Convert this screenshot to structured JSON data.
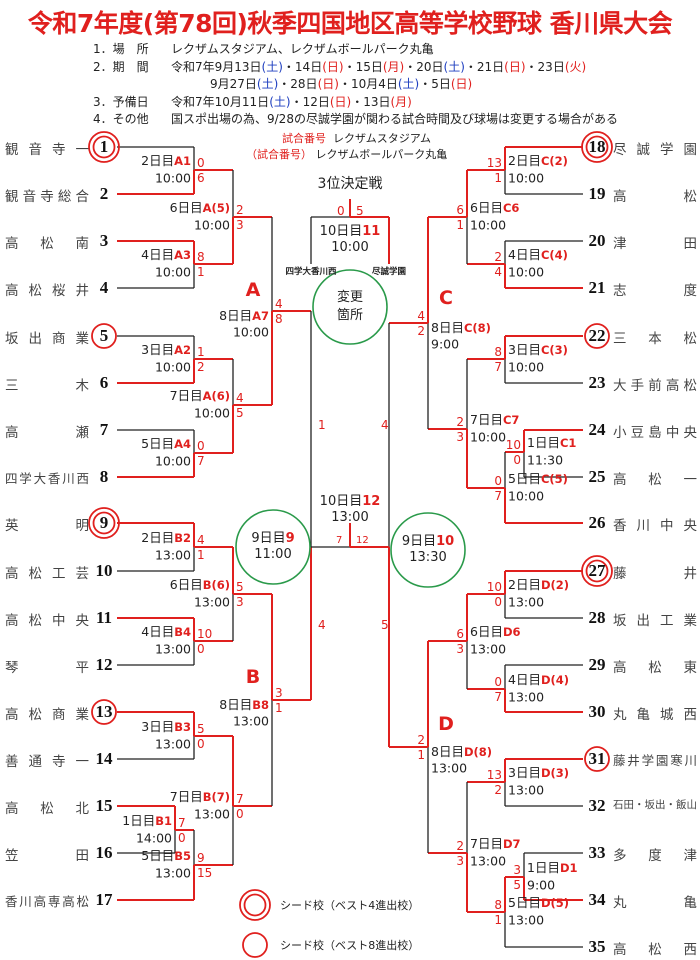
{
  "header": {
    "title": "令和7年度(第78回)秋季四国地区高等学校野球 香川県大会",
    "info": [
      {
        "label": "1．場　所",
        "segments": [
          {
            "t": "レクザムスタジアム、レクザムボールパーク丸亀"
          }
        ]
      },
      {
        "label": "2．期　間",
        "segments": [
          {
            "t": "令和7年9月13日"
          },
          {
            "t": "(土)",
            "c": "sat"
          },
          {
            "t": "・14日"
          },
          {
            "t": "(日)",
            "c": "hol"
          },
          {
            "t": "・15日"
          },
          {
            "t": "(月)",
            "c": "hol"
          },
          {
            "t": "・20日"
          },
          {
            "t": "(土)",
            "c": "sat"
          },
          {
            "t": "・21日"
          },
          {
            "t": "(日)",
            "c": "hol"
          },
          {
            "t": "・23日"
          },
          {
            "t": "(火)",
            "c": "hol"
          }
        ]
      },
      {
        "label": "",
        "segments": [
          {
            "t": "9月27日"
          },
          {
            "t": "(土)",
            "c": "sat"
          },
          {
            "t": "・28日"
          },
          {
            "t": "(日)",
            "c": "hol"
          },
          {
            "t": "・10月4日"
          },
          {
            "t": "(土)",
            "c": "sat"
          },
          {
            "t": "・5日"
          },
          {
            "t": "(日)",
            "c": "hol"
          }
        ]
      },
      {
        "label": "3．予備日",
        "segments": [
          {
            "t": "令和7年10月11日"
          },
          {
            "t": "(土)",
            "c": "sat"
          },
          {
            "t": "・12日"
          },
          {
            "t": "(日)",
            "c": "hol"
          },
          {
            "t": "・13日"
          },
          {
            "t": "(月)",
            "c": "hol"
          }
        ]
      },
      {
        "label": "4．その他",
        "segments": [
          {
            "t": "国スポ出場の為、9/28の尽誠学園が関わる試合時間及び球場は変更する場合がある"
          }
        ]
      }
    ]
  },
  "venue_legend": {
    "line1_key": "試合番号",
    "line1_value": "レクザムスタジアム",
    "line2_key": "（試合番号）",
    "line2_value": "レクザムボールパーク丸亀"
  },
  "third_place": {
    "title": "3位決定戦",
    "left_team": "四学大香川西",
    "right_team": "尽誠学園"
  },
  "change_note": {
    "line1": "変更",
    "line2": "箇所"
  },
  "regions": [
    "A",
    "B",
    "C",
    "D"
  ],
  "seed_legend": {
    "double": "シード校（ベスト4進出校）",
    "single": "シード校（ベスト8進出校）"
  },
  "colors": {
    "accent": "#e0201e",
    "saturday": "#2040c0",
    "circle_green": "#2a9a4a",
    "line": "#222222"
  },
  "teams": [
    {
      "no": "1",
      "name": "観音寺一",
      "seed": "double"
    },
    {
      "no": "2",
      "name": "観音寺総合"
    },
    {
      "no": "3",
      "name": "高松南"
    },
    {
      "no": "4",
      "name": "高松桜井"
    },
    {
      "no": "5",
      "name": "坂出商業",
      "seed": "single"
    },
    {
      "no": "6",
      "name": "三木"
    },
    {
      "no": "7",
      "name": "高瀬"
    },
    {
      "no": "8",
      "name": "四学大香川西"
    },
    {
      "no": "9",
      "name": "英明",
      "seed": "double"
    },
    {
      "no": "10",
      "name": "高松工芸"
    },
    {
      "no": "11",
      "name": "高松中央"
    },
    {
      "no": "12",
      "name": "琴平"
    },
    {
      "no": "13",
      "name": "高松商業",
      "seed": "single"
    },
    {
      "no": "14",
      "name": "善通寺一"
    },
    {
      "no": "15",
      "name": "高松北"
    },
    {
      "no": "16",
      "name": "笠田"
    },
    {
      "no": "17",
      "name": "香川高専高松"
    },
    {
      "no": "18",
      "name": "尽誠学園",
      "seed": "double"
    },
    {
      "no": "19",
      "name": "高松"
    },
    {
      "no": "20",
      "name": "津田"
    },
    {
      "no": "21",
      "name": "志度"
    },
    {
      "no": "22",
      "name": "三本松",
      "seed": "single"
    },
    {
      "no": "23",
      "name": "大手前高松"
    },
    {
      "no": "24",
      "name": "小豆島中央"
    },
    {
      "no": "25",
      "name": "高松一"
    },
    {
      "no": "26",
      "name": "香川中央"
    },
    {
      "no": "27",
      "name": "藤井",
      "seed": "double"
    },
    {
      "no": "28",
      "name": "坂出工業"
    },
    {
      "no": "29",
      "name": "高松東"
    },
    {
      "no": "30",
      "name": "丸亀城西"
    },
    {
      "no": "31",
      "name": "藤井学園寒川",
      "seed": "single"
    },
    {
      "no": "32",
      "name": "石田・坂出・飯山"
    },
    {
      "no": "33",
      "name": "多度津"
    },
    {
      "no": "34",
      "name": "丸亀"
    },
    {
      "no": "35",
      "name": "高松西"
    }
  ],
  "matches": {
    "A1": {
      "day": "2日目",
      "code": "A1",
      "time": "10:00",
      "scores": [
        "0",
        "6"
      ]
    },
    "A3": {
      "day": "4日目",
      "code": "A3",
      "time": "10:00",
      "scores": [
        "8",
        "1"
      ]
    },
    "A5": {
      "day": "6日目",
      "code": "A(5)",
      "time": "10:00",
      "scores": [
        "2",
        "3"
      ]
    },
    "A2": {
      "day": "3日目",
      "code": "A2",
      "time": "10:00",
      "scores": [
        "1",
        "2"
      ]
    },
    "A4": {
      "day": "5日目",
      "code": "A4",
      "time": "10:00",
      "scores": [
        "0",
        "7"
      ]
    },
    "A6": {
      "day": "7日目",
      "code": "A(6)",
      "time": "10:00",
      "scores": [
        "4",
        "5"
      ]
    },
    "A7": {
      "day": "8日目",
      "code": "A7",
      "time": "10:00",
      "scores": [
        "4",
        "8"
      ]
    },
    "B2": {
      "day": "2日目",
      "code": "B2",
      "time": "13:00",
      "scores": [
        "4",
        "1"
      ]
    },
    "B4": {
      "day": "4日目",
      "code": "B4",
      "time": "13:00",
      "scores": [
        "10",
        "0"
      ]
    },
    "B6": {
      "day": "6日目",
      "code": "B(6)",
      "time": "13:00",
      "scores": [
        "5",
        "3"
      ]
    },
    "B3": {
      "day": "3日目",
      "code": "B3",
      "time": "13:00",
      "scores": [
        "5",
        "0"
      ]
    },
    "B1": {
      "day": "1日目",
      "code": "B1",
      "time": "14:00",
      "scores": [
        "7",
        "0"
      ]
    },
    "B5": {
      "day": "5日目",
      "code": "B5",
      "time": "13:00",
      "scores": [
        "9",
        "15"
      ]
    },
    "B7": {
      "day": "7日目",
      "code": "B(7)",
      "time": "13:00",
      "scores": [
        "7",
        "0"
      ]
    },
    "B8": {
      "day": "8日目",
      "code": "B8",
      "time": "13:00",
      "scores": [
        "3",
        "1"
      ]
    },
    "C2": {
      "day": "2日目",
      "code": "C(2)",
      "time": "10:00",
      "scores": [
        "13",
        "1"
      ]
    },
    "C4": {
      "day": "4日目",
      "code": "C(4)",
      "time": "10:00",
      "scores": [
        "2",
        "4"
      ]
    },
    "C6": {
      "day": "6日目",
      "code": "C6",
      "time": "10:00",
      "scores": [
        "6",
        "1"
      ]
    },
    "C3": {
      "day": "3日目",
      "code": "C(3)",
      "time": "10:00",
      "scores": [
        "8",
        "7"
      ]
    },
    "C1": {
      "day": "1日目",
      "code": "C1",
      "time": "11:30",
      "scores": [
        "10",
        "0"
      ]
    },
    "C5": {
      "day": "5日目",
      "code": "C(5)",
      "time": "10:00",
      "scores": [
        "0",
        "7"
      ]
    },
    "C7": {
      "day": "7日目",
      "code": "C7",
      "time": "10:00",
      "scores": [
        "2",
        "3"
      ]
    },
    "C8": {
      "day": "8日目",
      "code": "C(8)",
      "time": "9:00",
      "scores": [
        "4",
        "2"
      ]
    },
    "D2": {
      "day": "2日目",
      "code": "D(2)",
      "time": "13:00",
      "scores": [
        "10",
        "0"
      ]
    },
    "D4": {
      "day": "4日目",
      "code": "D(4)",
      "time": "13:00",
      "scores": [
        "0",
        "7"
      ]
    },
    "D6": {
      "day": "6日目",
      "code": "D6",
      "time": "13:00",
      "scores": [
        "6",
        "3"
      ]
    },
    "D3": {
      "day": "3日目",
      "code": "D(3)",
      "time": "13:00",
      "scores": [
        "13",
        "2"
      ]
    },
    "D1": {
      "day": "1日目",
      "code": "D1",
      "time": "9:00",
      "scores": [
        "3",
        "5"
      ]
    },
    "D5": {
      "day": "5日目",
      "code": "D(5)",
      "time": "13:00",
      "scores": [
        "8",
        "1"
      ]
    },
    "D7": {
      "day": "7日目",
      "code": "D7",
      "time": "13:00",
      "scores": [
        "2",
        "3"
      ]
    },
    "D8": {
      "day": "8日目",
      "code": "D(8)",
      "time": "13:00",
      "scores": [
        "2",
        "1"
      ]
    },
    "S9": {
      "day": "9日目",
      "code": "9",
      "time": "11:00",
      "scores": [
        "1",
        "4"
      ]
    },
    "S10": {
      "day": "9日目",
      "code": "10",
      "time": "13:30",
      "scores": [
        "4",
        "5"
      ]
    },
    "F12": {
      "day": "10日目",
      "code": "12",
      "time": "13:00",
      "scores": [
        "7",
        "12"
      ]
    },
    "T11": {
      "day": "10日目",
      "code": "11",
      "time": "10:00",
      "scores": [
        "0",
        "5"
      ]
    }
  }
}
